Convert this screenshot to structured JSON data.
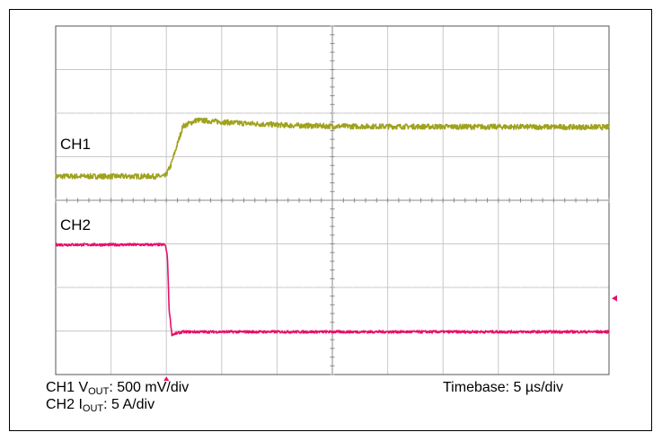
{
  "captions": {
    "ch1_prefix": "CH1 V",
    "ch1_sub": "OUT",
    "ch1_suffix": ": 500 mV/div",
    "ch2_prefix": "CH2 I",
    "ch2_sub": "OUT",
    "ch2_suffix": ": 5 A/div",
    "timebase": "Timebase: 5 µs/div"
  },
  "colors": {
    "ch1": "#a0a21e",
    "ch2": "#e8106a",
    "grid": "#c8c8c8",
    "border": "#000000"
  },
  "chart_data": {
    "type": "line",
    "title": "",
    "xlabel": "",
    "ylabel": "",
    "grid": true,
    "x_divisions": 10,
    "y_divisions": 8,
    "xlim": [
      0,
      10
    ],
    "ylim": [
      0,
      8
    ],
    "trigger_marker_x": 2.0,
    "ch2_offset_marker_y": 1.75,
    "series": [
      {
        "name": "CH1",
        "points": [
          [
            0,
            4.55
          ],
          [
            1.98,
            4.55
          ],
          [
            2.08,
            4.8
          ],
          [
            2.3,
            5.7
          ],
          [
            2.55,
            5.84
          ],
          [
            3.2,
            5.78
          ],
          [
            4.2,
            5.72
          ],
          [
            5.0,
            5.7
          ],
          [
            7.0,
            5.69
          ],
          [
            10,
            5.68
          ]
        ],
        "noise": 0.06
      },
      {
        "name": "CH2",
        "points": [
          [
            0,
            2.98
          ],
          [
            1.98,
            2.98
          ],
          [
            2.02,
            2.7
          ],
          [
            2.05,
            1.5
          ],
          [
            2.1,
            0.92
          ],
          [
            2.3,
            0.98
          ],
          [
            10,
            0.98
          ]
        ],
        "noise": 0.03
      }
    ]
  }
}
